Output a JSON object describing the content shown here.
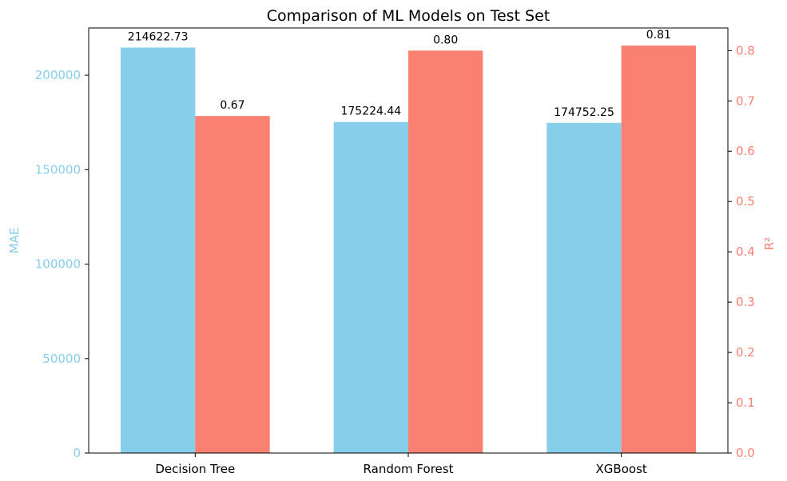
{
  "chart_data": {
    "type": "bar",
    "title": "Comparison of ML Models on Test Set",
    "categories": [
      "Decision Tree",
      "Random Forest",
      "XGBoost"
    ],
    "series": [
      {
        "name": "MAE",
        "axis": "left",
        "color": "#87CEEB",
        "values": [
          214622.73,
          175224.44,
          174752.25
        ],
        "labels": [
          "214622.73",
          "175224.44",
          "174752.25"
        ]
      },
      {
        "name": "R²",
        "axis": "right",
        "color": "#FA8072",
        "values": [
          0.67,
          0.8,
          0.81
        ],
        "labels": [
          "0.67",
          "0.80",
          "0.81"
        ]
      }
    ],
    "y_left": {
      "label": "MAE",
      "color": "#87CEEB",
      "lim": [
        0,
        225000
      ],
      "ticks": [
        0,
        50000,
        100000,
        150000,
        200000
      ],
      "tick_labels": [
        "0",
        "50000",
        "100000",
        "150000",
        "200000"
      ]
    },
    "y_right": {
      "label": "R²",
      "color": "#FA8072",
      "lim": [
        0,
        0.845
      ],
      "ticks": [
        0.0,
        0.1,
        0.2,
        0.3,
        0.4,
        0.5,
        0.6,
        0.7,
        0.8
      ],
      "tick_labels": [
        "0.0",
        "0.1",
        "0.2",
        "0.3",
        "0.4",
        "0.5",
        "0.6",
        "0.7",
        "0.8"
      ]
    },
    "grid": false,
    "legend": "none"
  }
}
